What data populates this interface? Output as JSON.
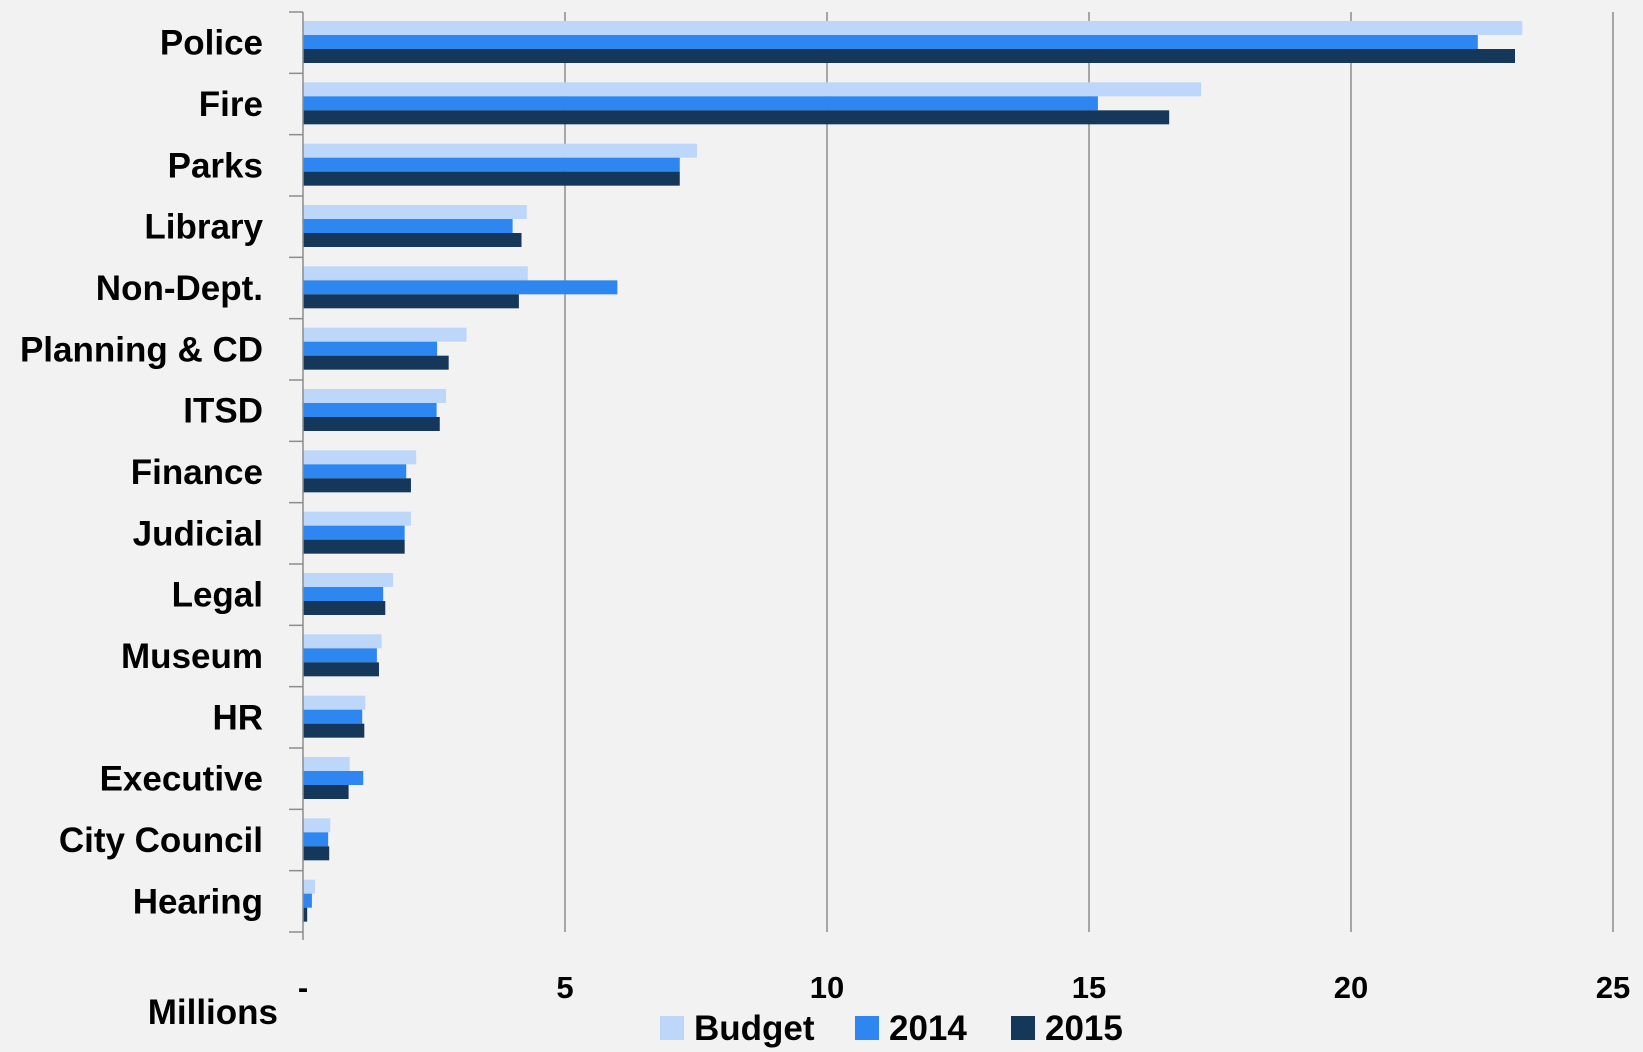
{
  "chart_data": {
    "type": "bar",
    "orientation": "horizontal",
    "categories": [
      "Police",
      "Fire",
      "Parks",
      "Library",
      "Non-Dept.",
      "Planning & CD",
      "ITSD",
      "Finance",
      "Judicial",
      "Legal",
      "Museum",
      "HR",
      "Executive",
      "City Council",
      "Hearing"
    ],
    "series": [
      {
        "name": "Budget",
        "color": "#bdd7fb",
        "values": [
          23.27,
          17.14,
          7.52,
          4.27,
          4.29,
          3.12,
          2.73,
          2.16,
          2.06,
          1.72,
          1.5,
          1.19,
          0.89,
          0.52,
          0.23
        ]
      },
      {
        "name": "2014",
        "color": "#2e86f0",
        "values": [
          22.42,
          15.17,
          7.19,
          4.0,
          6.0,
          2.56,
          2.55,
          1.97,
          1.94,
          1.53,
          1.41,
          1.13,
          1.15,
          0.48,
          0.17
        ]
      },
      {
        "name": "2015",
        "color": "#14375a",
        "values": [
          23.13,
          16.53,
          7.19,
          4.17,
          4.12,
          2.78,
          2.61,
          2.06,
          1.94,
          1.57,
          1.45,
          1.17,
          0.87,
          0.5,
          0.08
        ]
      }
    ],
    "x_ticks": [
      "-",
      "5",
      "10",
      "15",
      "20",
      "25"
    ],
    "x_tick_values": [
      0,
      5,
      10,
      15,
      20,
      25
    ],
    "xlim": [
      0,
      25
    ],
    "xlabel": "Millions",
    "title": "",
    "grid": true,
    "legend_position": "bottom"
  }
}
